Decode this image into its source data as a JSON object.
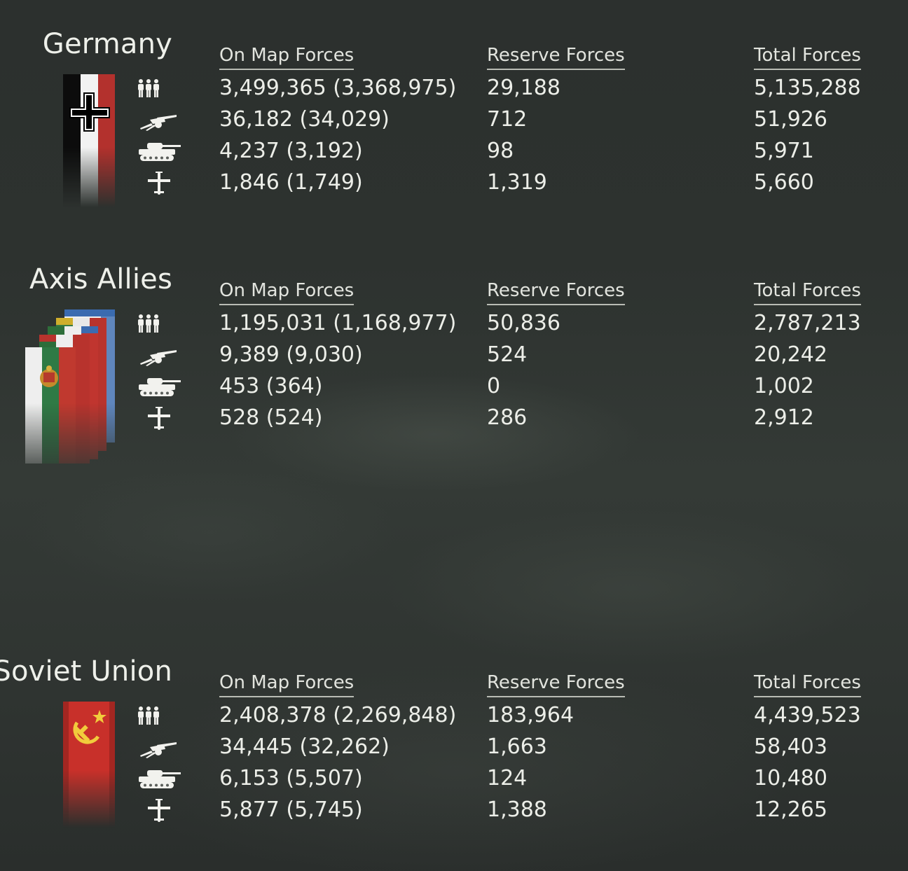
{
  "headers": {
    "on_map": "On Map Forces",
    "reserve": "Reserve Forces",
    "total": "Total Forces"
  },
  "unit_icons": [
    "infantry-icon",
    "gun-icon",
    "tank-icon",
    "aircraft-icon"
  ],
  "sections": [
    {
      "title": "Germany",
      "flag_icon": "germany-flag-icon",
      "rows": [
        {
          "on_map": "3,499,365 (3,368,975)",
          "reserve": "29,188",
          "total": "5,135,288"
        },
        {
          "on_map": "36,182 (34,029)",
          "reserve": "712",
          "total": "51,926"
        },
        {
          "on_map": "4,237 (3,192)",
          "reserve": "98",
          "total": "5,971"
        },
        {
          "on_map": "1,846 (1,749)",
          "reserve": "1,319",
          "total": "5,660"
        }
      ]
    },
    {
      "title": "Axis Allies",
      "flag_icon": "axis-allies-flags-icon",
      "rows": [
        {
          "on_map": "1,195,031 (1,168,977)",
          "reserve": "50,836",
          "total": "2,787,213"
        },
        {
          "on_map": "9,389 (9,030)",
          "reserve": "524",
          "total": "20,242"
        },
        {
          "on_map": "453 (364)",
          "reserve": "0",
          "total": "1,002"
        },
        {
          "on_map": "528 (524)",
          "reserve": "286",
          "total": "2,912"
        }
      ]
    },
    {
      "title": "Soviet Union",
      "flag_icon": "soviet-flag-icon",
      "rows": [
        {
          "on_map": "2,408,378 (2,269,848)",
          "reserve": "183,964",
          "total": "4,439,523"
        },
        {
          "on_map": "34,445 (32,262)",
          "reserve": "1,663",
          "total": "58,403"
        },
        {
          "on_map": "6,153 (5,507)",
          "reserve": "124",
          "total": "10,480"
        },
        {
          "on_map": "5,877 (5,745)",
          "reserve": "1,388",
          "total": "12,265"
        }
      ]
    }
  ]
}
